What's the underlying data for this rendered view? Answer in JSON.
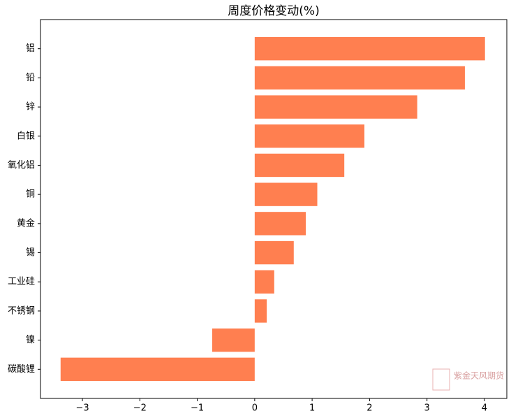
{
  "chart_data": {
    "type": "barh",
    "title": "周度价格变动(%)",
    "categories": [
      "铝",
      "铅",
      "锌",
      "白银",
      "氧化铝",
      "铜",
      "黄金",
      "锡",
      "工业硅",
      "不锈钢",
      "镍",
      "碳酸锂"
    ],
    "values": [
      4.01,
      3.66,
      2.83,
      1.91,
      1.56,
      1.09,
      0.89,
      0.68,
      0.34,
      0.21,
      -0.74,
      -3.38
    ],
    "color": "#ff7f50",
    "xlim": [
      -3.73,
      4.39
    ],
    "xticks": [
      {
        "value": -3,
        "label": "−3"
      },
      {
        "value": -2,
        "label": "−2"
      },
      {
        "value": -1,
        "label": "−1"
      },
      0,
      1,
      2,
      3,
      4
    ],
    "watermark": "紫金天风期货"
  }
}
